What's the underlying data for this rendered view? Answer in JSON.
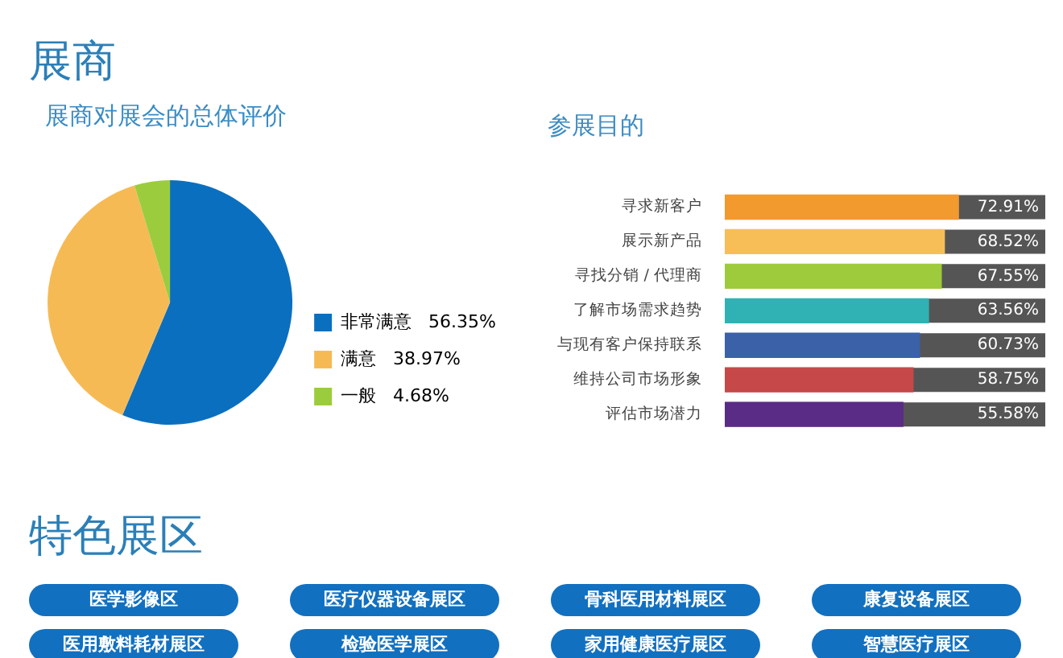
{
  "chart_data": [
    {
      "type": "pie",
      "title": "展商对展会的总体评价",
      "annotations": [
        "展商"
      ],
      "categories": [
        "非常满意",
        "满意",
        "一般"
      ],
      "values": [
        56.35,
        38.97,
        4.68
      ],
      "colors": [
        "#0b6fbf",
        "#f6ba55",
        "#9bcc3e"
      ],
      "value_labels": [
        "56.35%",
        "38.97%",
        "4.68%"
      ],
      "legend": "bottom right"
    },
    {
      "type": "bar",
      "orientation": "horizontal",
      "title": "参展目的",
      "categories": [
        "寻求新客户",
        "展示新产品",
        "寻找分销 / 代理商",
        "了解市场需求趋势",
        "与现有客户保持联系",
        "维持公司市场形象",
        "评估市场潜力"
      ],
      "values": [
        72.91,
        68.52,
        67.55,
        63.56,
        60.73,
        58.75,
        55.58
      ],
      "colors": [
        "#f29a2e",
        "#f7be58",
        "#9ecb3c",
        "#30b2b4",
        "#3b62a8",
        "#c64848",
        "#5a2c86"
      ],
      "value_labels": [
        "72.91%",
        "68.52%",
        "67.55%",
        "63.56%",
        "60.73%",
        "58.75%",
        "55.58%"
      ],
      "xlim": [
        0,
        100
      ],
      "tick_labels": "y"
    },
    {
      "type": "other",
      "title": "特色展区",
      "annotations": [
        "医学影像区",
        "医疗仪器设备展区",
        "骨科医用材料展区",
        "康复设备展区",
        "医用敷料耗材展区",
        "检验医学展区",
        "家用健康医疗展区",
        "智慧医疗展区"
      ]
    }
  ]
}
